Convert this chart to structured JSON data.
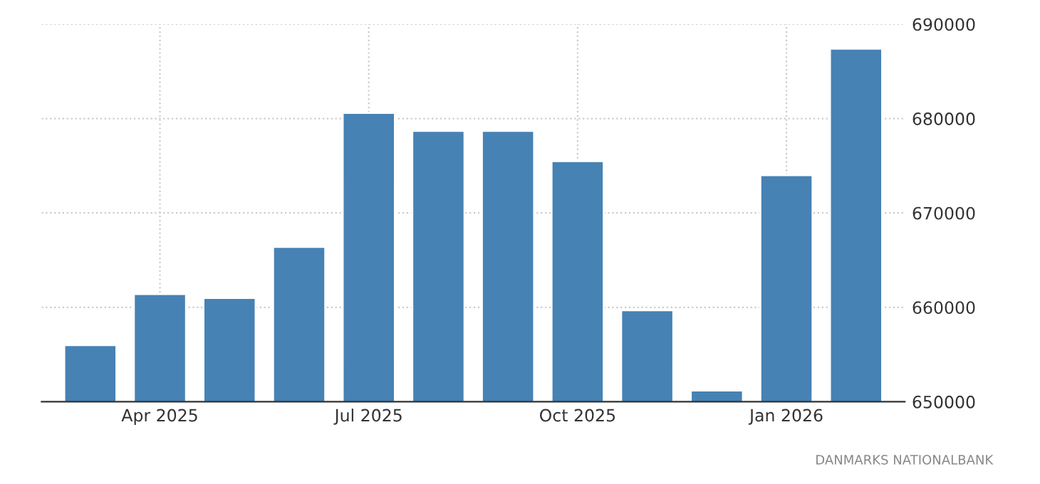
{
  "chart_data": {
    "type": "bar",
    "categories": [
      null,
      "Apr 2025",
      null,
      null,
      "Jul 2025",
      null,
      null,
      "Oct 2025",
      null,
      null,
      "Jan 2026",
      null
    ],
    "values": [
      656000,
      661400,
      661000,
      666400,
      680600,
      678700,
      678700,
      675500,
      659700,
      651200,
      674000,
      687400
    ],
    "color": "#4682b4",
    "ylim": [
      650000,
      690000
    ],
    "yticks": [
      650000,
      660000,
      670000,
      680000,
      690000
    ],
    "grid": true,
    "annotations": [
      "DANMARKS NATIONALBANK"
    ]
  }
}
